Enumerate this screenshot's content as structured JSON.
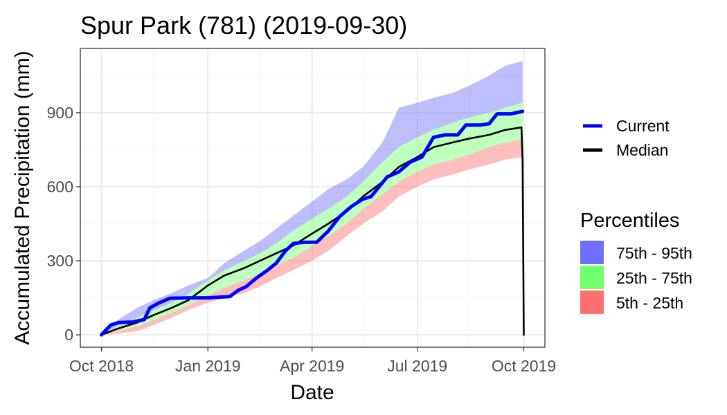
{
  "chart_data": {
    "type": "line",
    "title": "Spur Park (781) (2019-09-30)",
    "xlabel": "Date",
    "ylabel": "Accumulated Precipitation (mm)",
    "x_ticks": [
      "Oct 2018",
      "Jan 2019",
      "Apr 2019",
      "Jul 2019",
      "Oct 2019"
    ],
    "y_ticks": [
      0,
      300,
      600,
      900
    ],
    "xlim": [
      "2018-10-01",
      "2019-10-01"
    ],
    "ylim": [
      -50,
      1160
    ],
    "grid": true,
    "legend_position": "right",
    "series": [
      {
        "name": "Current",
        "color": "#0000ff",
        "points": [
          [
            "2018-10-01",
            0
          ],
          [
            "2018-10-05",
            20
          ],
          [
            "2018-10-09",
            40
          ],
          [
            "2018-10-16",
            50
          ],
          [
            "2018-10-28",
            52
          ],
          [
            "2018-11-07",
            62
          ],
          [
            "2018-11-12",
            110
          ],
          [
            "2018-11-20",
            130
          ],
          [
            "2018-11-29",
            148
          ],
          [
            "2018-12-15",
            150
          ],
          [
            "2019-01-01",
            150
          ],
          [
            "2019-01-20",
            155
          ],
          [
            "2019-01-27",
            180
          ],
          [
            "2019-02-03",
            195
          ],
          [
            "2019-02-12",
            230
          ],
          [
            "2019-02-21",
            260
          ],
          [
            "2019-03-01",
            290
          ],
          [
            "2019-03-09",
            340
          ],
          [
            "2019-03-16",
            370
          ],
          [
            "2019-03-25",
            375
          ],
          [
            "2019-04-05",
            375
          ],
          [
            "2019-04-15",
            420
          ],
          [
            "2019-04-25",
            480
          ],
          [
            "2019-05-05",
            520
          ],
          [
            "2019-05-15",
            550
          ],
          [
            "2019-05-22",
            560
          ],
          [
            "2019-05-29",
            600
          ],
          [
            "2019-06-05",
            640
          ],
          [
            "2019-06-15",
            660
          ],
          [
            "2019-06-25",
            700
          ],
          [
            "2019-07-05",
            720
          ],
          [
            "2019-07-15",
            800
          ],
          [
            "2019-07-25",
            810
          ],
          [
            "2019-08-05",
            810
          ],
          [
            "2019-08-12",
            850
          ],
          [
            "2019-08-25",
            850
          ],
          [
            "2019-09-01",
            855
          ],
          [
            "2019-09-08",
            895
          ],
          [
            "2019-09-20",
            895
          ],
          [
            "2019-09-30",
            905
          ]
        ]
      },
      {
        "name": "Median",
        "color": "#000000",
        "points": [
          [
            "2018-10-01",
            0
          ],
          [
            "2018-10-15",
            25
          ],
          [
            "2018-11-01",
            50
          ],
          [
            "2018-11-15",
            80
          ],
          [
            "2018-12-01",
            110
          ],
          [
            "2018-12-15",
            140
          ],
          [
            "2019-01-01",
            200
          ],
          [
            "2019-01-15",
            240
          ],
          [
            "2019-02-01",
            270
          ],
          [
            "2019-02-15",
            300
          ],
          [
            "2019-03-01",
            330
          ],
          [
            "2019-03-15",
            360
          ],
          [
            "2019-04-01",
            410
          ],
          [
            "2019-04-15",
            450
          ],
          [
            "2019-05-01",
            500
          ],
          [
            "2019-05-15",
            560
          ],
          [
            "2019-06-01",
            620
          ],
          [
            "2019-06-15",
            680
          ],
          [
            "2019-07-01",
            720
          ],
          [
            "2019-07-15",
            760
          ],
          [
            "2019-08-01",
            780
          ],
          [
            "2019-08-15",
            795
          ],
          [
            "2019-09-01",
            810
          ],
          [
            "2019-09-15",
            830
          ],
          [
            "2019-09-29",
            840
          ],
          [
            "2019-09-30",
            700
          ],
          [
            "2019-10-01",
            0
          ]
        ]
      }
    ],
    "bands": [
      {
        "name": "75th - 95th",
        "color": "#6f6fff",
        "upper": [
          [
            "2018-10-01",
            0
          ],
          [
            "2018-10-15",
            60
          ],
          [
            "2018-11-01",
            110
          ],
          [
            "2018-11-15",
            140
          ],
          [
            "2018-12-01",
            170
          ],
          [
            "2018-12-15",
            200
          ],
          [
            "2019-01-01",
            230
          ],
          [
            "2019-01-15",
            290
          ],
          [
            "2019-02-01",
            340
          ],
          [
            "2019-02-15",
            380
          ],
          [
            "2019-03-01",
            430
          ],
          [
            "2019-03-15",
            480
          ],
          [
            "2019-04-01",
            540
          ],
          [
            "2019-04-15",
            590
          ],
          [
            "2019-05-01",
            630
          ],
          [
            "2019-05-15",
            680
          ],
          [
            "2019-06-01",
            780
          ],
          [
            "2019-06-15",
            920
          ],
          [
            "2019-07-01",
            940
          ],
          [
            "2019-07-15",
            960
          ],
          [
            "2019-08-01",
            980
          ],
          [
            "2019-08-15",
            1010
          ],
          [
            "2019-09-01",
            1050
          ],
          [
            "2019-09-15",
            1090
          ],
          [
            "2019-09-30",
            1110
          ]
        ],
        "lower": [
          [
            "2018-10-01",
            0
          ],
          [
            "2018-10-15",
            35
          ],
          [
            "2018-11-01",
            70
          ],
          [
            "2018-11-15",
            100
          ],
          [
            "2018-12-01",
            130
          ],
          [
            "2018-12-15",
            165
          ],
          [
            "2019-01-01",
            220
          ],
          [
            "2019-01-15",
            260
          ],
          [
            "2019-02-01",
            300
          ],
          [
            "2019-02-15",
            330
          ],
          [
            "2019-03-01",
            370
          ],
          [
            "2019-03-15",
            420
          ],
          [
            "2019-04-01",
            470
          ],
          [
            "2019-04-15",
            510
          ],
          [
            "2019-05-01",
            560
          ],
          [
            "2019-05-15",
            620
          ],
          [
            "2019-06-01",
            700
          ],
          [
            "2019-06-15",
            760
          ],
          [
            "2019-07-01",
            800
          ],
          [
            "2019-07-15",
            830
          ],
          [
            "2019-08-01",
            860
          ],
          [
            "2019-08-15",
            880
          ],
          [
            "2019-09-01",
            900
          ],
          [
            "2019-09-15",
            920
          ],
          [
            "2019-09-30",
            940
          ]
        ]
      },
      {
        "name": "25th - 75th",
        "color": "#6fff6f",
        "upper": [
          [
            "2018-10-01",
            0
          ],
          [
            "2018-10-15",
            35
          ],
          [
            "2018-11-01",
            70
          ],
          [
            "2018-11-15",
            100
          ],
          [
            "2018-12-01",
            130
          ],
          [
            "2018-12-15",
            165
          ],
          [
            "2019-01-01",
            220
          ],
          [
            "2019-01-15",
            260
          ],
          [
            "2019-02-01",
            300
          ],
          [
            "2019-02-15",
            330
          ],
          [
            "2019-03-01",
            370
          ],
          [
            "2019-03-15",
            420
          ],
          [
            "2019-04-01",
            470
          ],
          [
            "2019-04-15",
            510
          ],
          [
            "2019-05-01",
            560
          ],
          [
            "2019-05-15",
            620
          ],
          [
            "2019-06-01",
            700
          ],
          [
            "2019-06-15",
            760
          ],
          [
            "2019-07-01",
            800
          ],
          [
            "2019-07-15",
            830
          ],
          [
            "2019-08-01",
            860
          ],
          [
            "2019-08-15",
            880
          ],
          [
            "2019-09-01",
            900
          ],
          [
            "2019-09-15",
            920
          ],
          [
            "2019-09-30",
            940
          ]
        ],
        "lower": [
          [
            "2018-10-01",
            0
          ],
          [
            "2018-10-15",
            15
          ],
          [
            "2018-11-01",
            35
          ],
          [
            "2018-11-15",
            60
          ],
          [
            "2018-12-01",
            90
          ],
          [
            "2018-12-15",
            120
          ],
          [
            "2019-01-01",
            160
          ],
          [
            "2019-01-15",
            190
          ],
          [
            "2019-02-01",
            220
          ],
          [
            "2019-02-15",
            250
          ],
          [
            "2019-03-01",
            280
          ],
          [
            "2019-03-15",
            310
          ],
          [
            "2019-04-01",
            360
          ],
          [
            "2019-04-15",
            400
          ],
          [
            "2019-05-01",
            450
          ],
          [
            "2019-05-15",
            510
          ],
          [
            "2019-06-01",
            570
          ],
          [
            "2019-06-15",
            620
          ],
          [
            "2019-07-01",
            660
          ],
          [
            "2019-07-15",
            690
          ],
          [
            "2019-08-01",
            710
          ],
          [
            "2019-08-15",
            730
          ],
          [
            "2019-09-01",
            760
          ],
          [
            "2019-09-15",
            780
          ],
          [
            "2019-09-30",
            790
          ]
        ]
      },
      {
        "name": "5th - 25th",
        "color": "#ff6f6f",
        "upper": [
          [
            "2018-10-01",
            0
          ],
          [
            "2018-10-15",
            15
          ],
          [
            "2018-11-01",
            35
          ],
          [
            "2018-11-15",
            60
          ],
          [
            "2018-12-01",
            90
          ],
          [
            "2018-12-15",
            120
          ],
          [
            "2019-01-01",
            160
          ],
          [
            "2019-01-15",
            190
          ],
          [
            "2019-02-01",
            220
          ],
          [
            "2019-02-15",
            250
          ],
          [
            "2019-03-01",
            280
          ],
          [
            "2019-03-15",
            310
          ],
          [
            "2019-04-01",
            360
          ],
          [
            "2019-04-15",
            400
          ],
          [
            "2019-05-01",
            450
          ],
          [
            "2019-05-15",
            510
          ],
          [
            "2019-06-01",
            570
          ],
          [
            "2019-06-15",
            620
          ],
          [
            "2019-07-01",
            660
          ],
          [
            "2019-07-15",
            690
          ],
          [
            "2019-08-01",
            710
          ],
          [
            "2019-08-15",
            730
          ],
          [
            "2019-09-01",
            760
          ],
          [
            "2019-09-15",
            780
          ],
          [
            "2019-09-30",
            790
          ]
        ],
        "lower": [
          [
            "2018-10-01",
            0
          ],
          [
            "2018-10-15",
            5
          ],
          [
            "2018-11-01",
            15
          ],
          [
            "2018-11-15",
            40
          ],
          [
            "2018-12-01",
            70
          ],
          [
            "2018-12-15",
            100
          ],
          [
            "2019-01-01",
            130
          ],
          [
            "2019-01-15",
            150
          ],
          [
            "2019-02-01",
            170
          ],
          [
            "2019-02-15",
            195
          ],
          [
            "2019-03-01",
            230
          ],
          [
            "2019-03-15",
            260
          ],
          [
            "2019-04-01",
            300
          ],
          [
            "2019-04-15",
            340
          ],
          [
            "2019-05-01",
            400
          ],
          [
            "2019-05-15",
            450
          ],
          [
            "2019-06-01",
            500
          ],
          [
            "2019-06-15",
            560
          ],
          [
            "2019-07-01",
            600
          ],
          [
            "2019-07-15",
            630
          ],
          [
            "2019-08-01",
            650
          ],
          [
            "2019-08-15",
            670
          ],
          [
            "2019-09-01",
            690
          ],
          [
            "2019-09-15",
            710
          ],
          [
            "2019-09-30",
            720
          ]
        ]
      }
    ],
    "legend": {
      "lines": [
        {
          "label": "Current",
          "color": "#0000ff"
        },
        {
          "label": "Median",
          "color": "#000000"
        }
      ],
      "percentiles_title": "Percentiles",
      "percentiles": [
        {
          "label": "75th - 95th",
          "color": "#6f6fff"
        },
        {
          "label": "25th - 75th",
          "color": "#6fff6f"
        },
        {
          "label": "5th - 25th",
          "color": "#ff6f6f"
        }
      ]
    }
  }
}
